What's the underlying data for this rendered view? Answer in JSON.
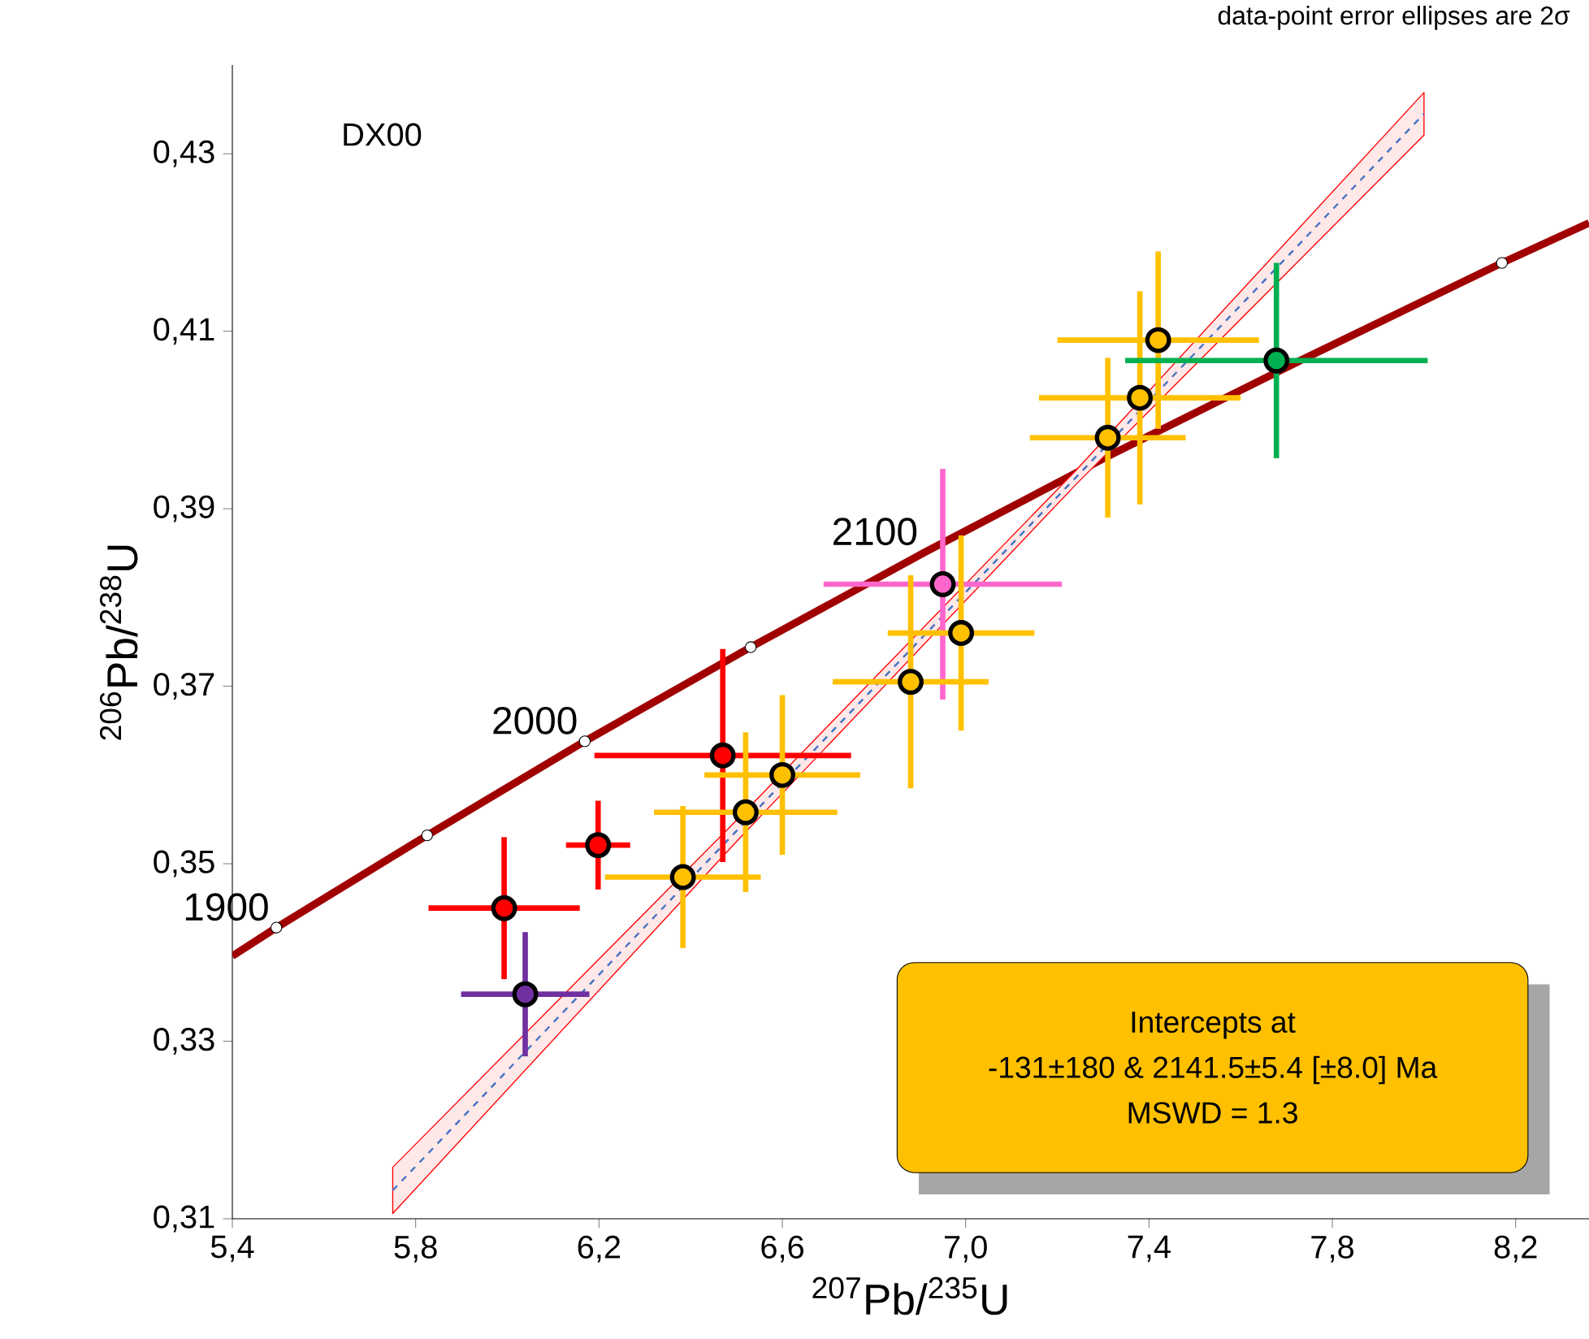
{
  "chart_data": {
    "type": "scatter",
    "xlabel": "$^{207}$Pb/$^{235}$U",
    "ylabel": "$^{206}$Pb/$^{238}$U",
    "xlim": [
      5.4,
      8.36
    ],
    "ylim": [
      0.31,
      0.44
    ],
    "xticks": [
      {
        "value": 5.4,
        "label": "5,4"
      },
      {
        "value": 5.8,
        "label": "5,8"
      },
      {
        "value": 6.2,
        "label": "6,2"
      },
      {
        "value": 6.6,
        "label": "6,6"
      },
      {
        "value": 7.0,
        "label": "7,0"
      },
      {
        "value": 7.4,
        "label": "7,4"
      },
      {
        "value": 7.8,
        "label": "7,8"
      },
      {
        "value": 8.2,
        "label": "8,2"
      }
    ],
    "yticks": [
      {
        "value": 0.31,
        "label": "0,31"
      },
      {
        "value": 0.33,
        "label": "0,33"
      },
      {
        "value": 0.35,
        "label": "0,35"
      },
      {
        "value": 0.37,
        "label": "0,37"
      },
      {
        "value": 0.39,
        "label": "0,39"
      },
      {
        "value": 0.41,
        "label": "0,41"
      },
      {
        "value": 0.43,
        "label": "0,43"
      }
    ],
    "grid": false,
    "series": [
      {
        "type": "line",
        "color": "#a00000",
        "line_style": "solid",
        "marker": "none",
        "x": [
          5.4,
          5.496,
          5.825,
          6.169,
          6.531,
          6.911,
          7.31,
          7.73,
          8.17,
          8.36
        ],
        "values": [
          0.3396,
          0.3428,
          0.3532,
          0.3638,
          0.3744,
          0.3851,
          0.3959,
          0.4067,
          0.4177,
          0.4222
        ]
      },
      {
        "type": "line",
        "color": "#4472c4",
        "line_style": "dashed",
        "marker": "none",
        "x": [
          5.75,
          6.5,
          7.24,
          8.0
        ],
        "values": [
          0.3132,
          0.3537,
          0.3935,
          0.4345
        ],
        "lower": [
          0.3106,
          0.3525,
          0.3927,
          0.4321
        ],
        "upper": [
          0.3158,
          0.3549,
          0.3943,
          0.4369
        ]
      },
      {
        "marker": "circle",
        "x": [
          6.039,
          5.993,
          6.198,
          6.47,
          6.95,
          6.52,
          6.383,
          6.6,
          6.88,
          6.99,
          7.31,
          7.38,
          7.42,
          7.678
        ],
        "values": [
          0.3353,
          0.345,
          0.3521,
          0.3622,
          0.3815,
          0.3558,
          0.3485,
          0.36,
          0.3705,
          0.376,
          0.398,
          0.4025,
          0.409,
          0.4067
        ],
        "colors": [
          "#7030a0",
          "#ff0000",
          "#ff0000",
          "#ff0000",
          "#ff66cc",
          "#ffc000",
          "#ffc000",
          "#ffc000",
          "#ffc000",
          "#ffc000",
          "#ffc000",
          "#ffc000",
          "#ffc000",
          "#00b050"
        ],
        "xerrors": [
          0.14,
          0.165,
          0.07,
          0.28,
          0.26,
          0.2,
          0.17,
          0.17,
          0.17,
          0.16,
          0.17,
          0.22,
          0.22,
          0.33
        ],
        "errors": [
          0.007,
          0.008,
          0.005,
          0.012,
          0.013,
          0.009,
          0.008,
          0.009,
          0.012,
          0.011,
          0.009,
          0.012,
          0.01,
          0.011
        ]
      },
      {
        "marker": "circle",
        "color": "#ffffff",
        "x": [
          5.496,
          5.825,
          6.169,
          6.531,
          8.17
        ],
        "values": [
          0.3428,
          0.3532,
          0.3638,
          0.3744,
          0.4177
        ]
      }
    ],
    "annotations": [
      "data-point error ellipses are 2σ",
      "DX00",
      "Intercepts at",
      "-131±180 & 2141.5±5.4   [±8.0]  Ma",
      "MSWD = 1.3",
      {
        "text": "1900",
        "x": 5.496,
        "y": 0.3428
      },
      {
        "text": "2000",
        "x": 6.169,
        "y": 0.3638
      },
      {
        "text": "2100",
        "x": 6.911,
        "y": 0.3851
      }
    ]
  }
}
